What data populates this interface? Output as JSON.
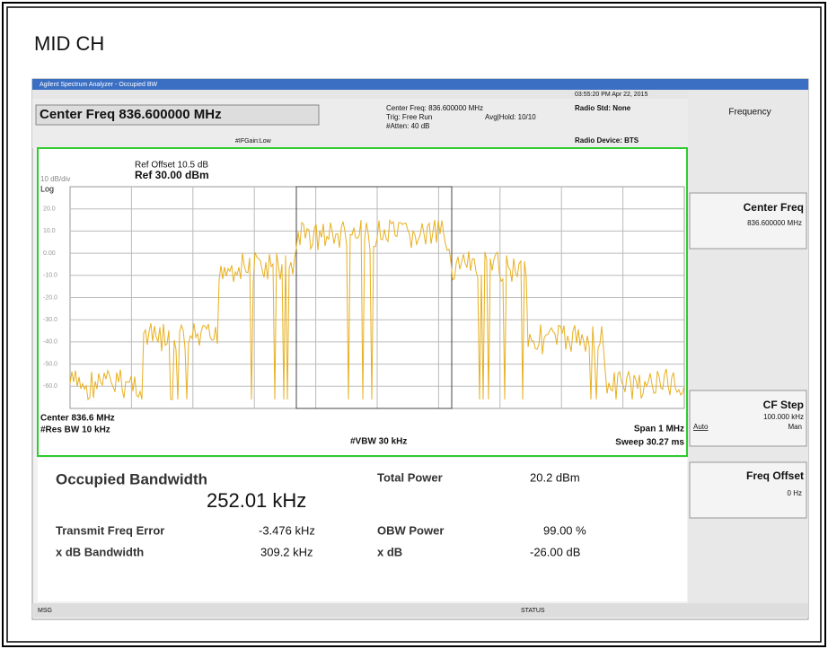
{
  "page_label": "MID CH",
  "window_title": "Agilent Spectrum Analyzer - Occupied BW",
  "header": {
    "center_freq": "Center Freq 836.600000 MHz",
    "center_freq_info": "Center Freq: 836.600000 MHz",
    "trig": "Trig: Free Run",
    "atten": "#Atten: 40 dB",
    "avg_hold": "Avg|Hold: 10/10",
    "if_gain": "#IFGain:Low",
    "datetime": "03:55:20 PM Apr 22, 2015",
    "radio_std": "Radio Std: None",
    "radio_device": "Radio Device: BTS"
  },
  "graph": {
    "scale": "10 dB/div",
    "scale_type": "Log",
    "ref_offset": "Ref Offset 10.5 dB",
    "ref_level": "Ref 30.00 dBm",
    "y_labels": [
      "20.0",
      "10.0",
      "0.00",
      "-10.0",
      "-20.0",
      "-30.0",
      "-40.0",
      "-50.0",
      "-60.0"
    ],
    "center": "Center  836.6 MHz",
    "res_bw": "#Res BW  10 kHz",
    "vbw": "#VBW  30 kHz",
    "span": "Span 1 MHz",
    "sweep": "Sweep  30.27 ms"
  },
  "results": {
    "obw_label": "Occupied Bandwidth",
    "obw_value": "252.01 kHz",
    "total_power_label": "Total Power",
    "total_power_value": "20.2 dBm",
    "freq_error_label": "Transmit Freq Error",
    "freq_error_value": "-3.476 kHz",
    "obw_power_label": "OBW Power",
    "obw_power_value": "99.00 %",
    "xdb_bw_label": "x dB Bandwidth",
    "xdb_bw_value": "309.2 kHz",
    "xdb_label": "x dB",
    "xdb_value": "-26.00 dB"
  },
  "softkeys": {
    "menu": "Frequency",
    "center_freq": "Center Freq",
    "center_freq_value": "836.600000 MHz",
    "cf_step": "CF Step",
    "cf_step_value": "100.000 kHz",
    "auto": "Auto",
    "man": "Man",
    "freq_offset": "Freq Offset",
    "freq_offset_value": "0 Hz"
  },
  "status_bar": {
    "msg": "MSG",
    "status": "STATUS"
  }
}
